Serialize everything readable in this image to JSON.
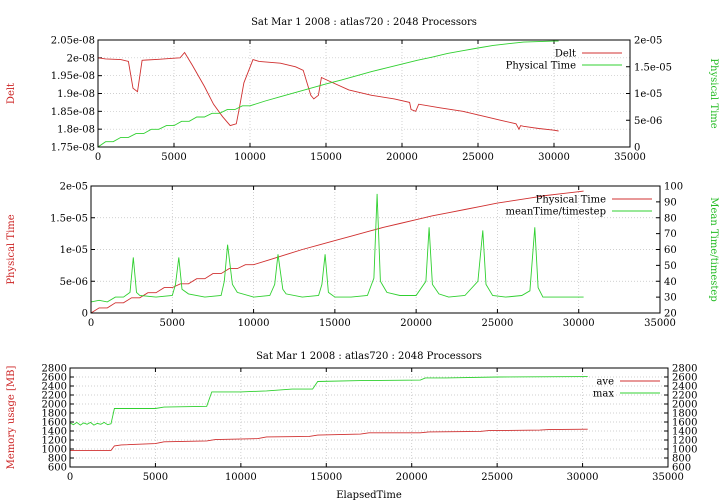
{
  "colors": {
    "series1": "#d03030",
    "series2": "#30d030",
    "axis_label_left": "#cc2222",
    "axis_label_right": "#22bb22"
  },
  "chart_data": [
    {
      "type": "line",
      "title": "Sat Mar 1 2008 : atlas720 : 2048 Processors",
      "xlabel": "",
      "ylabel": "Delt",
      "y2label": "Physical Time",
      "xlim": [
        0,
        35000
      ],
      "ylim": [
        1.75e-08,
        2.05e-08
      ],
      "y2lim": [
        0,
        2e-05
      ],
      "xticks": [
        "0",
        "5000",
        "10000",
        "15000",
        "20000",
        "25000",
        "30000",
        "35000"
      ],
      "yticks": [
        "1.75e-08",
        "1.8e-08",
        "1.85e-08",
        "1.9e-08",
        "1.95e-08",
        "2e-08",
        "2.05e-08"
      ],
      "y2ticks": [
        "0",
        "5e-06",
        "1e-05",
        "1.5e-05",
        "2e-05"
      ],
      "legend_position": "top-right",
      "grid": true,
      "series": [
        {
          "name": "Delt",
          "axis": "y",
          "x": [
            0,
            500,
            1500,
            2000,
            2300,
            2600,
            2900,
            3200,
            4000,
            5000,
            5400,
            5700,
            6200,
            7000,
            7600,
            8200,
            8700,
            9100,
            9300,
            9600,
            10200,
            10600,
            12000,
            13000,
            13500,
            14000,
            14200,
            14500,
            14700,
            15200,
            16500,
            18000,
            19500,
            20500,
            20600,
            20900,
            21100,
            22500,
            24000,
            25500,
            26500,
            27500,
            27700,
            27800,
            28000,
            29000,
            30000,
            30300
          ],
          "y": [
            2e-08,
            1.997e-08,
            1.995e-08,
            1.99e-08,
            1.915e-08,
            1.905e-08,
            1.993e-08,
            1.994e-08,
            1.996e-08,
            1.999e-08,
            2e-08,
            2.015e-08,
            1.98e-08,
            1.92e-08,
            1.87e-08,
            1.835e-08,
            1.81e-08,
            1.815e-08,
            1.86e-08,
            1.93e-08,
            1.995e-08,
            1.99e-08,
            1.985e-08,
            1.975e-08,
            1.965e-08,
            1.895e-08,
            1.885e-08,
            1.895e-08,
            1.945e-08,
            1.935e-08,
            1.91e-08,
            1.895e-08,
            1.885e-08,
            1.875e-08,
            1.855e-08,
            1.85e-08,
            1.87e-08,
            1.86e-08,
            1.85e-08,
            1.835e-08,
            1.825e-08,
            1.815e-08,
            1.8e-08,
            1.81e-08,
            1.808e-08,
            1.802e-08,
            1.797e-08,
            1.795e-08
          ]
        },
        {
          "name": "Physical Time",
          "axis": "y2",
          "x": [
            0,
            500,
            1000,
            1500,
            2000,
            2500,
            3000,
            3500,
            4000,
            4500,
            5000,
            5500,
            6000,
            6500,
            7000,
            7500,
            8000,
            8500,
            9000,
            9500,
            10000,
            11000,
            12000,
            13000,
            14000,
            15000,
            16000,
            17000,
            18000,
            19000,
            20000,
            21000,
            22000,
            23000,
            24000,
            25000,
            26000,
            27000,
            28000,
            29000,
            30000,
            30300
          ],
          "y": [
            0,
            1e-06,
            1e-06,
            1.8e-06,
            1.8e-06,
            2.5e-06,
            2.5e-06,
            3.3e-06,
            3.3e-06,
            4e-06,
            4e-06,
            4.8e-06,
            4.8e-06,
            5.6e-06,
            5.6e-06,
            6.3e-06,
            6.3e-06,
            7e-06,
            7e-06,
            7.7e-06,
            7.7e-06,
            8.6e-06,
            9.4e-06,
            1.02e-05,
            1.1e-05,
            1.18e-05,
            1.25e-05,
            1.33e-05,
            1.41e-05,
            1.48e-05,
            1.55e-05,
            1.62e-05,
            1.68e-05,
            1.75e-05,
            1.8e-05,
            1.85e-05,
            1.9e-05,
            1.93e-05,
            1.96e-05,
            1.97e-05,
            1.98e-05,
            1.98e-05
          ]
        }
      ]
    },
    {
      "type": "line",
      "title": "",
      "xlabel": "",
      "ylabel": "Physical Time",
      "y2label": "Mean Time/timestep",
      "xlim": [
        0,
        35000
      ],
      "ylim": [
        0,
        2e-05
      ],
      "y2lim": [
        20,
        100
      ],
      "xticks": [
        "0",
        "5000",
        "10000",
        "15000",
        "20000",
        "25000",
        "30000",
        "35000"
      ],
      "yticks": [
        "0",
        "5e-06",
        "1e-05",
        "1.5e-05",
        "2e-05"
      ],
      "y2ticks": [
        "20",
        "30",
        "40",
        "50",
        "60",
        "70",
        "80",
        "90",
        "100"
      ],
      "legend_position": "top-right",
      "grid": true,
      "series": [
        {
          "name": "Physical Time",
          "axis": "y",
          "x": [
            0,
            500,
            1000,
            1500,
            2000,
            2500,
            3000,
            3500,
            4000,
            4500,
            5000,
            5500,
            6000,
            6500,
            7000,
            7500,
            8000,
            8500,
            9000,
            9500,
            10000,
            11000,
            12000,
            13000,
            14000,
            15000,
            16000,
            17000,
            18000,
            19000,
            20000,
            21000,
            22000,
            23000,
            24000,
            25000,
            26000,
            27000,
            28000,
            29000,
            30000,
            30300
          ],
          "y": [
            0,
            8e-07,
            8e-07,
            1.6e-06,
            1.6e-06,
            2.4e-06,
            2.4e-06,
            3.2e-06,
            3.2e-06,
            4e-06,
            4e-06,
            4.6e-06,
            4.6e-06,
            5.4e-06,
            5.4e-06,
            6.2e-06,
            6.2e-06,
            7e-06,
            7e-06,
            7.6e-06,
            7.6e-06,
            8.4e-06,
            9.2e-06,
            1e-05,
            1.07e-05,
            1.14e-05,
            1.21e-05,
            1.28e-05,
            1.35e-05,
            1.41e-05,
            1.47e-05,
            1.53e-05,
            1.58e-05,
            1.63e-05,
            1.68e-05,
            1.73e-05,
            1.77e-05,
            1.81e-05,
            1.85e-05,
            1.88e-05,
            1.91e-05,
            1.92e-05
          ]
        },
        {
          "name": "meanTime/timestep",
          "axis": "y2",
          "x": [
            0,
            500,
            1000,
            1500,
            2000,
            2400,
            2600,
            2800,
            3000,
            4000,
            5000,
            5200,
            5400,
            5600,
            6000,
            7000,
            8000,
            8200,
            8400,
            8700,
            9000,
            10000,
            11000,
            11300,
            11500,
            11800,
            12000,
            13000,
            14000,
            14200,
            14400,
            14600,
            15000,
            16000,
            17000,
            17400,
            17600,
            17800,
            18200,
            19000,
            20000,
            20600,
            20800,
            21000,
            21400,
            22000,
            23000,
            23800,
            24100,
            24300,
            24700,
            25500,
            26500,
            27000,
            27300,
            27500,
            27800,
            28500,
            29500,
            30300
          ],
          "y": [
            27,
            28,
            27,
            30,
            30,
            33,
            55,
            33,
            31,
            30,
            31,
            38,
            55,
            35,
            32,
            30,
            31,
            40,
            63,
            38,
            33,
            30,
            31,
            38,
            57,
            35,
            32,
            30,
            31,
            38,
            57,
            33,
            30,
            30,
            31,
            42,
            95,
            40,
            33,
            31,
            31,
            40,
            74,
            38,
            32,
            30,
            31,
            40,
            72,
            38,
            31,
            30,
            31,
            34,
            74,
            36,
            30,
            30,
            30,
            30
          ]
        }
      ]
    },
    {
      "type": "line",
      "title": "Sat Mar 1 2008 : atlas720 : 2048 Processors",
      "xlabel": "ElapsedTime",
      "ylabel": "Memory usage [MB]",
      "y2label": "",
      "xlim": [
        0,
        35000
      ],
      "ylim": [
        600,
        2800
      ],
      "y2lim": [
        600,
        2800
      ],
      "xticks": [
        "0",
        "5000",
        "10000",
        "15000",
        "20000",
        "25000",
        "30000",
        "35000"
      ],
      "yticks": [
        "600",
        "800",
        "1000",
        "1200",
        "1400",
        "1600",
        "1800",
        "2000",
        "2200",
        "2400",
        "2600",
        "2800"
      ],
      "y2ticks": [
        "600",
        "800",
        "1000",
        "1200",
        "1400",
        "1600",
        "1800",
        "2000",
        "2200",
        "2400",
        "2600",
        "2800"
      ],
      "legend_position": "top-right",
      "grid": true,
      "series": [
        {
          "name": "ave",
          "axis": "y",
          "x": [
            0,
            2400,
            2600,
            3000,
            5000,
            5500,
            8000,
            8500,
            11000,
            11500,
            14000,
            14500,
            17000,
            17500,
            20500,
            21000,
            24000,
            24500,
            27500,
            28000,
            30300
          ],
          "y": [
            970,
            970,
            1070,
            1090,
            1120,
            1160,
            1180,
            1210,
            1230,
            1270,
            1280,
            1310,
            1330,
            1360,
            1360,
            1380,
            1390,
            1410,
            1420,
            1430,
            1440
          ]
        },
        {
          "name": "max",
          "axis": "y2",
          "x": [
            0,
            200,
            400,
            600,
            800,
            1000,
            1200,
            1400,
            1600,
            1800,
            2000,
            2200,
            2400,
            2600,
            3000,
            5000,
            5500,
            8000,
            8300,
            10000,
            11500,
            13000,
            14200,
            14500,
            17000,
            20500,
            20800,
            22000,
            25000,
            30300
          ],
          "y": [
            1580,
            1540,
            1590,
            1530,
            1580,
            1550,
            1590,
            1530,
            1570,
            1550,
            1590,
            1540,
            1560,
            1900,
            1900,
            1900,
            1930,
            1950,
            2270,
            2270,
            2290,
            2330,
            2330,
            2500,
            2520,
            2530,
            2580,
            2580,
            2600,
            2610
          ]
        }
      ]
    }
  ]
}
